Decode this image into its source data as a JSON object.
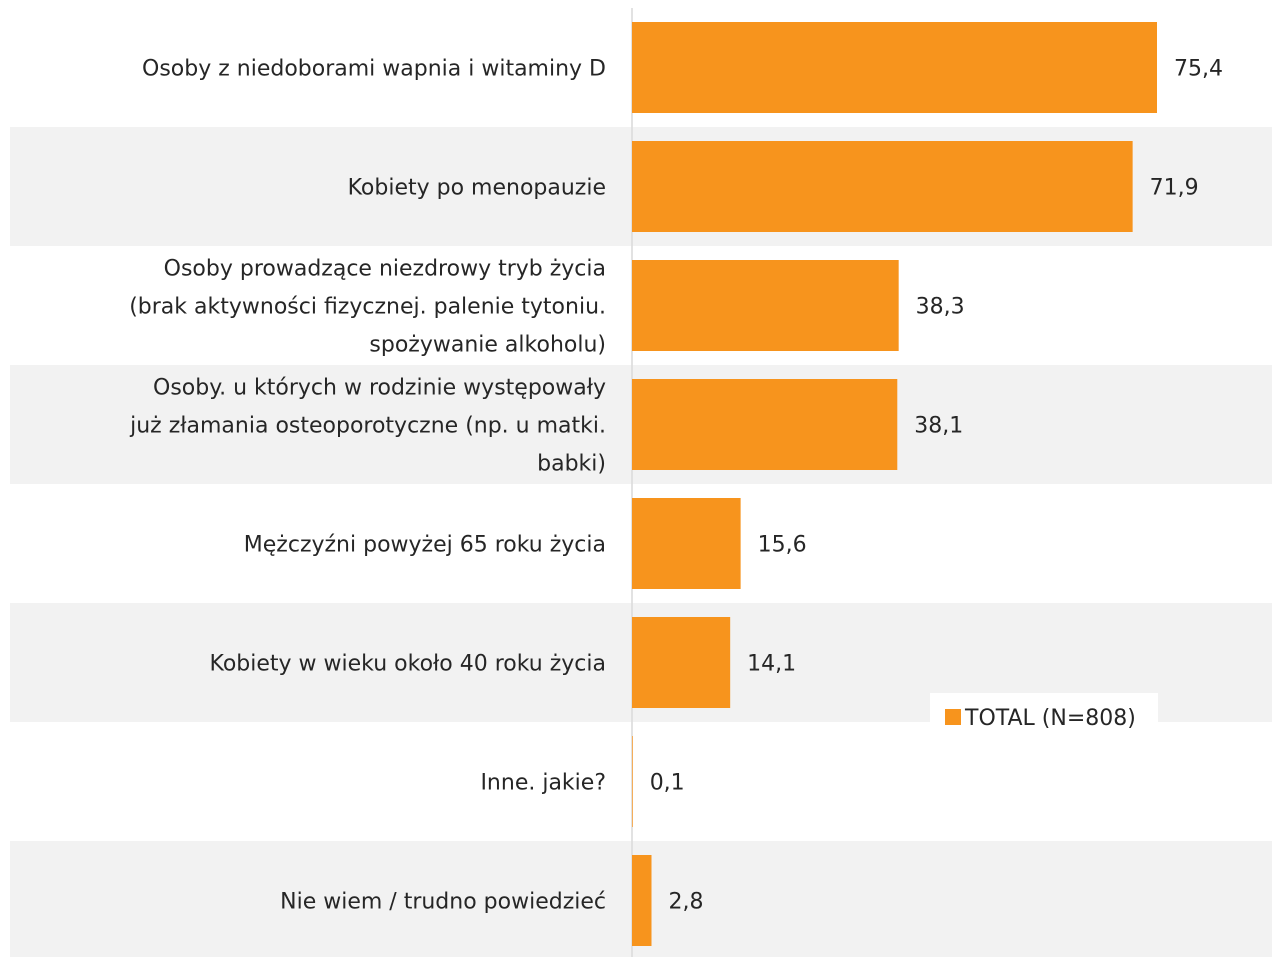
{
  "chart_data": {
    "type": "bar",
    "orientation": "horizontal",
    "categories": [
      [
        "Osoby z niedoborami wapnia i witaminy D"
      ],
      [
        "Kobiety po menopauzie"
      ],
      [
        "Osoby prowadzące niezdrowy tryb życia",
        "(brak aktywności fizycznej. palenie tytoniu.",
        "spożywanie alkoholu)"
      ],
      [
        "Osoby. u których w rodzinie występowały",
        "już złamania osteoporotyczne (np. u matki.",
        "babki)"
      ],
      [
        "Mężczyźni powyżej 65 roku życia"
      ],
      [
        "Kobiety w wieku około 40 roku życia"
      ],
      [
        "Inne. jakie?"
      ],
      [
        "Nie wiem / trudno powiedzieć"
      ]
    ],
    "series": [
      {
        "name": "TOTAL (N=808)",
        "values": [
          75.4,
          71.9,
          38.3,
          38.1,
          15.6,
          14.1,
          0.1,
          2.8
        ],
        "value_labels": [
          "75,4",
          "71,9",
          "38,3",
          "38,1",
          "15,6",
          "14,1",
          "0,1",
          "2,8"
        ],
        "color": "#f7941d"
      }
    ],
    "xlim": [
      0,
      100
    ],
    "grid": false,
    "legend_position": "bottom-right",
    "row_background": "#f2f2f2",
    "axis_color": "#d9d9d9"
  }
}
